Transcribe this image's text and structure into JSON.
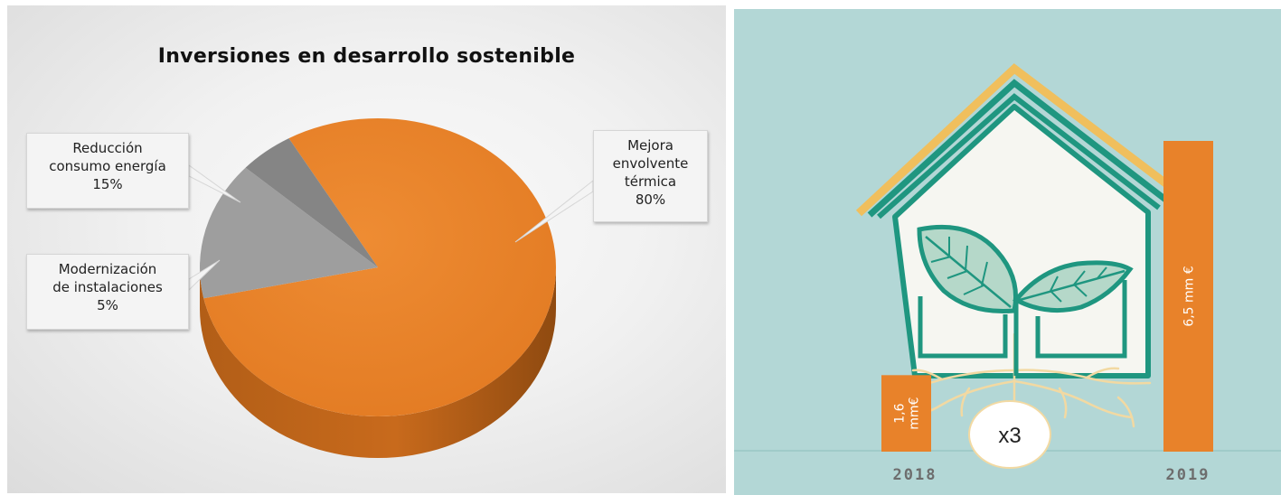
{
  "chart_data": [
    {
      "type": "pie",
      "title": "Inversiones en desarrollo sostenible",
      "slices": [
        {
          "label": [
            "Mejora",
            "envolvente",
            "térmica"
          ],
          "percent_label": "80%",
          "value": 80,
          "color": "#e8822a"
        },
        {
          "label": [
            "Reducción",
            "consumo energía"
          ],
          "percent_label": "15%",
          "value": 15,
          "color": "#9e9e9e"
        },
        {
          "label": [
            "Modernización",
            "de instalaciones"
          ],
          "percent_label": "5%",
          "value": 5,
          "color": "#858585"
        }
      ]
    },
    {
      "type": "bar",
      "categories": [
        "2018",
        "2019"
      ],
      "values": [
        1.6,
        6.5
      ],
      "bar_labels": [
        "1,6 mm€",
        "6,5 mm €"
      ],
      "annotation": "x3",
      "color": "#e8822a"
    }
  ]
}
